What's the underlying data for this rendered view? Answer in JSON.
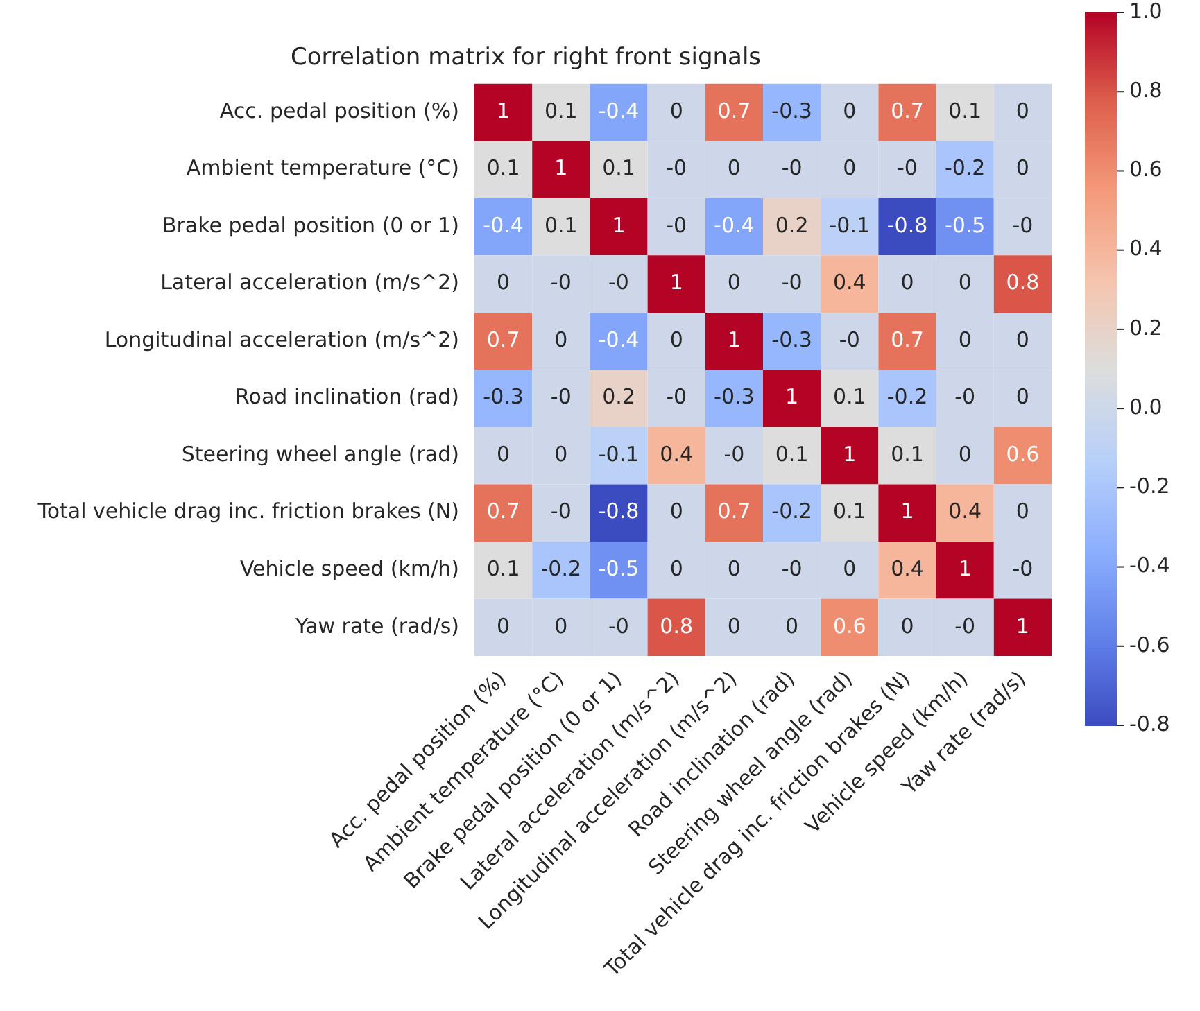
{
  "chart_data": {
    "type": "heatmap",
    "title": "Correlation matrix for right front signals",
    "categories": [
      "Acc. pedal position (%)",
      "Ambient temperature (°C)",
      "Brake pedal position (0 or 1)",
      "Lateral acceleration (m/s^2)",
      "Longitudinal acceleration (m/s^2)",
      "Road inclination (rad)",
      "Steering wheel angle (rad)",
      "Total vehicle drag inc. friction brakes (N)",
      "Vehicle speed (km/h)",
      "Yaw rate (rad/s)"
    ],
    "y_categories": [
      "Acc. pedal position (%)",
      "Ambient temperature (°C)",
      "Brake pedal position (0 or 1)",
      "Lateral acceleration (m/s^2)",
      "Longitudinal acceleration (m/s^2)",
      "Road inclination (rad)",
      "Steering wheel angle (rad)",
      "Total vehicle drag inc. friction brakes (N)",
      "Vehicle speed (km/h)",
      "Yaw rate (rad/s)"
    ],
    "cells": [
      [
        1,
        0.1,
        -0.4,
        0,
        0.7,
        -0.3,
        0,
        0.7,
        0.1,
        0
      ],
      [
        0.1,
        1,
        0.1,
        0,
        0,
        0,
        0,
        0,
        -0.2,
        0
      ],
      [
        -0.4,
        0.1,
        1,
        0,
        -0.4,
        0.2,
        -0.1,
        -0.8,
        -0.5,
        0
      ],
      [
        0,
        0,
        0,
        1,
        0,
        0,
        0.4,
        0,
        0,
        0.8
      ],
      [
        0.7,
        0,
        -0.4,
        0,
        1,
        -0.3,
        0,
        0.7,
        0,
        0
      ],
      [
        -0.3,
        0,
        0.2,
        0,
        -0.3,
        1,
        0.1,
        -0.2,
        0,
        0
      ],
      [
        0,
        0,
        -0.1,
        0.4,
        0,
        0.1,
        1,
        0.1,
        0,
        0.6
      ],
      [
        0.7,
        0,
        -0.8,
        0,
        0.7,
        -0.2,
        0.1,
        1,
        0.4,
        0
      ],
      [
        0.1,
        -0.2,
        -0.5,
        0,
        0,
        0,
        0,
        0.4,
        1,
        0
      ],
      [
        0,
        0,
        0,
        0.8,
        0,
        0,
        0.6,
        0,
        0,
        1
      ]
    ],
    "cell_labels": [
      [
        "1",
        "0.1",
        "-0.4",
        "0",
        "0.7",
        "-0.3",
        "0",
        "0.7",
        "0.1",
        "0"
      ],
      [
        "0.1",
        "1",
        "0.1",
        "-0",
        "0",
        "-0",
        "0",
        "-0",
        "-0.2",
        "0"
      ],
      [
        "-0.4",
        "0.1",
        "1",
        "-0",
        "-0.4",
        "0.2",
        "-0.1",
        "-0.8",
        "-0.5",
        "-0"
      ],
      [
        "0",
        "-0",
        "-0",
        "1",
        "0",
        "-0",
        "0.4",
        "0",
        "0",
        "0.8"
      ],
      [
        "0.7",
        "0",
        "-0.4",
        "0",
        "1",
        "-0.3",
        "-0",
        "0.7",
        "0",
        "0"
      ],
      [
        "-0.3",
        "-0",
        "0.2",
        "-0",
        "-0.3",
        "1",
        "0.1",
        "-0.2",
        "-0",
        "0"
      ],
      [
        "0",
        "0",
        "-0.1",
        "0.4",
        "-0",
        "0.1",
        "1",
        "0.1",
        "0",
        "0.6"
      ],
      [
        "0.7",
        "-0",
        "-0.8",
        "0",
        "0.7",
        "-0.2",
        "0.1",
        "1",
        "0.4",
        "0"
      ],
      [
        "0.1",
        "-0.2",
        "-0.5",
        "0",
        "0",
        "-0",
        "0",
        "0.4",
        "1",
        "-0"
      ],
      [
        "0",
        "0",
        "-0",
        "0.8",
        "0",
        "0",
        "0.6",
        "0",
        "-0",
        "1"
      ]
    ],
    "clim": [
      -0.8,
      1
    ],
    "cticks": [
      {
        "value": -0.8,
        "label": "-0.8"
      },
      {
        "value": -0.6,
        "label": "-0.6"
      },
      {
        "value": -0.4,
        "label": "-0.4"
      },
      {
        "value": -0.2,
        "label": "-0.2"
      },
      {
        "value": 0,
        "label": "0.0"
      },
      {
        "value": 0.2,
        "label": "0.2"
      },
      {
        "value": 0.4,
        "label": "0.4"
      },
      {
        "value": 0.6,
        "label": "0.6"
      },
      {
        "value": 0.8,
        "label": "0.8"
      },
      {
        "value": 1,
        "label": "1.0"
      }
    ]
  }
}
